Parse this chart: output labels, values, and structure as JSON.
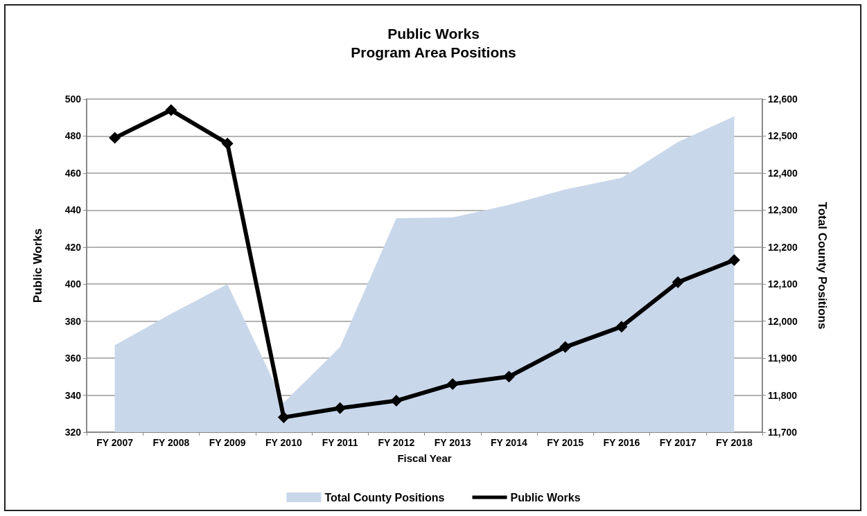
{
  "chart_data": {
    "type": "line",
    "title": "Public Works\nProgram Area Positions",
    "xlabel": "Fiscal Year",
    "ylabel": "Public Works",
    "y2label": "Total County Positions",
    "categories": [
      "FY 2007",
      "FY 2008",
      "FY 2009",
      "FY 2010",
      "FY 2011",
      "FY 2012",
      "FY 2013",
      "FY 2014",
      "FY 2015",
      "FY 2016",
      "FY 2017",
      "FY 2018"
    ],
    "series": [
      {
        "name": "Total County Positions",
        "type": "area",
        "axis": "y2",
        "color": "#c9d7ea",
        "values": [
          11935,
          12020,
          12100,
          11780,
          11930,
          12278,
          12280,
          12314,
          12356,
          12387,
          12484,
          12553
        ]
      },
      {
        "name": "Public Works",
        "marker": "diamond",
        "color": "#000000",
        "values": [
          479,
          494,
          476,
          328,
          333,
          337,
          346,
          350,
          366,
          377,
          401,
          413
        ]
      }
    ],
    "ylim": [
      320,
      500
    ],
    "yticks": [
      320,
      340,
      360,
      380,
      400,
      420,
      440,
      460,
      480,
      500
    ],
    "y2lim": [
      11700,
      12600
    ],
    "y2ticks": [
      {
        "value": 11700,
        "label": "11,700"
      },
      {
        "value": 11800,
        "label": "11,800"
      },
      {
        "value": 11900,
        "label": "11,900"
      },
      {
        "value": 12000,
        "label": "12,000"
      },
      {
        "value": 12100,
        "label": "12,100"
      },
      {
        "value": 12200,
        "label": "12,200"
      },
      {
        "value": 12300,
        "label": "12,300"
      },
      {
        "value": 12400,
        "label": "12,400"
      },
      {
        "value": 12500,
        "label": "12,500"
      },
      {
        "value": 12600,
        "label": "12,600"
      }
    ],
    "grid": "y",
    "legend": "bottom",
    "line_style": "solid"
  }
}
